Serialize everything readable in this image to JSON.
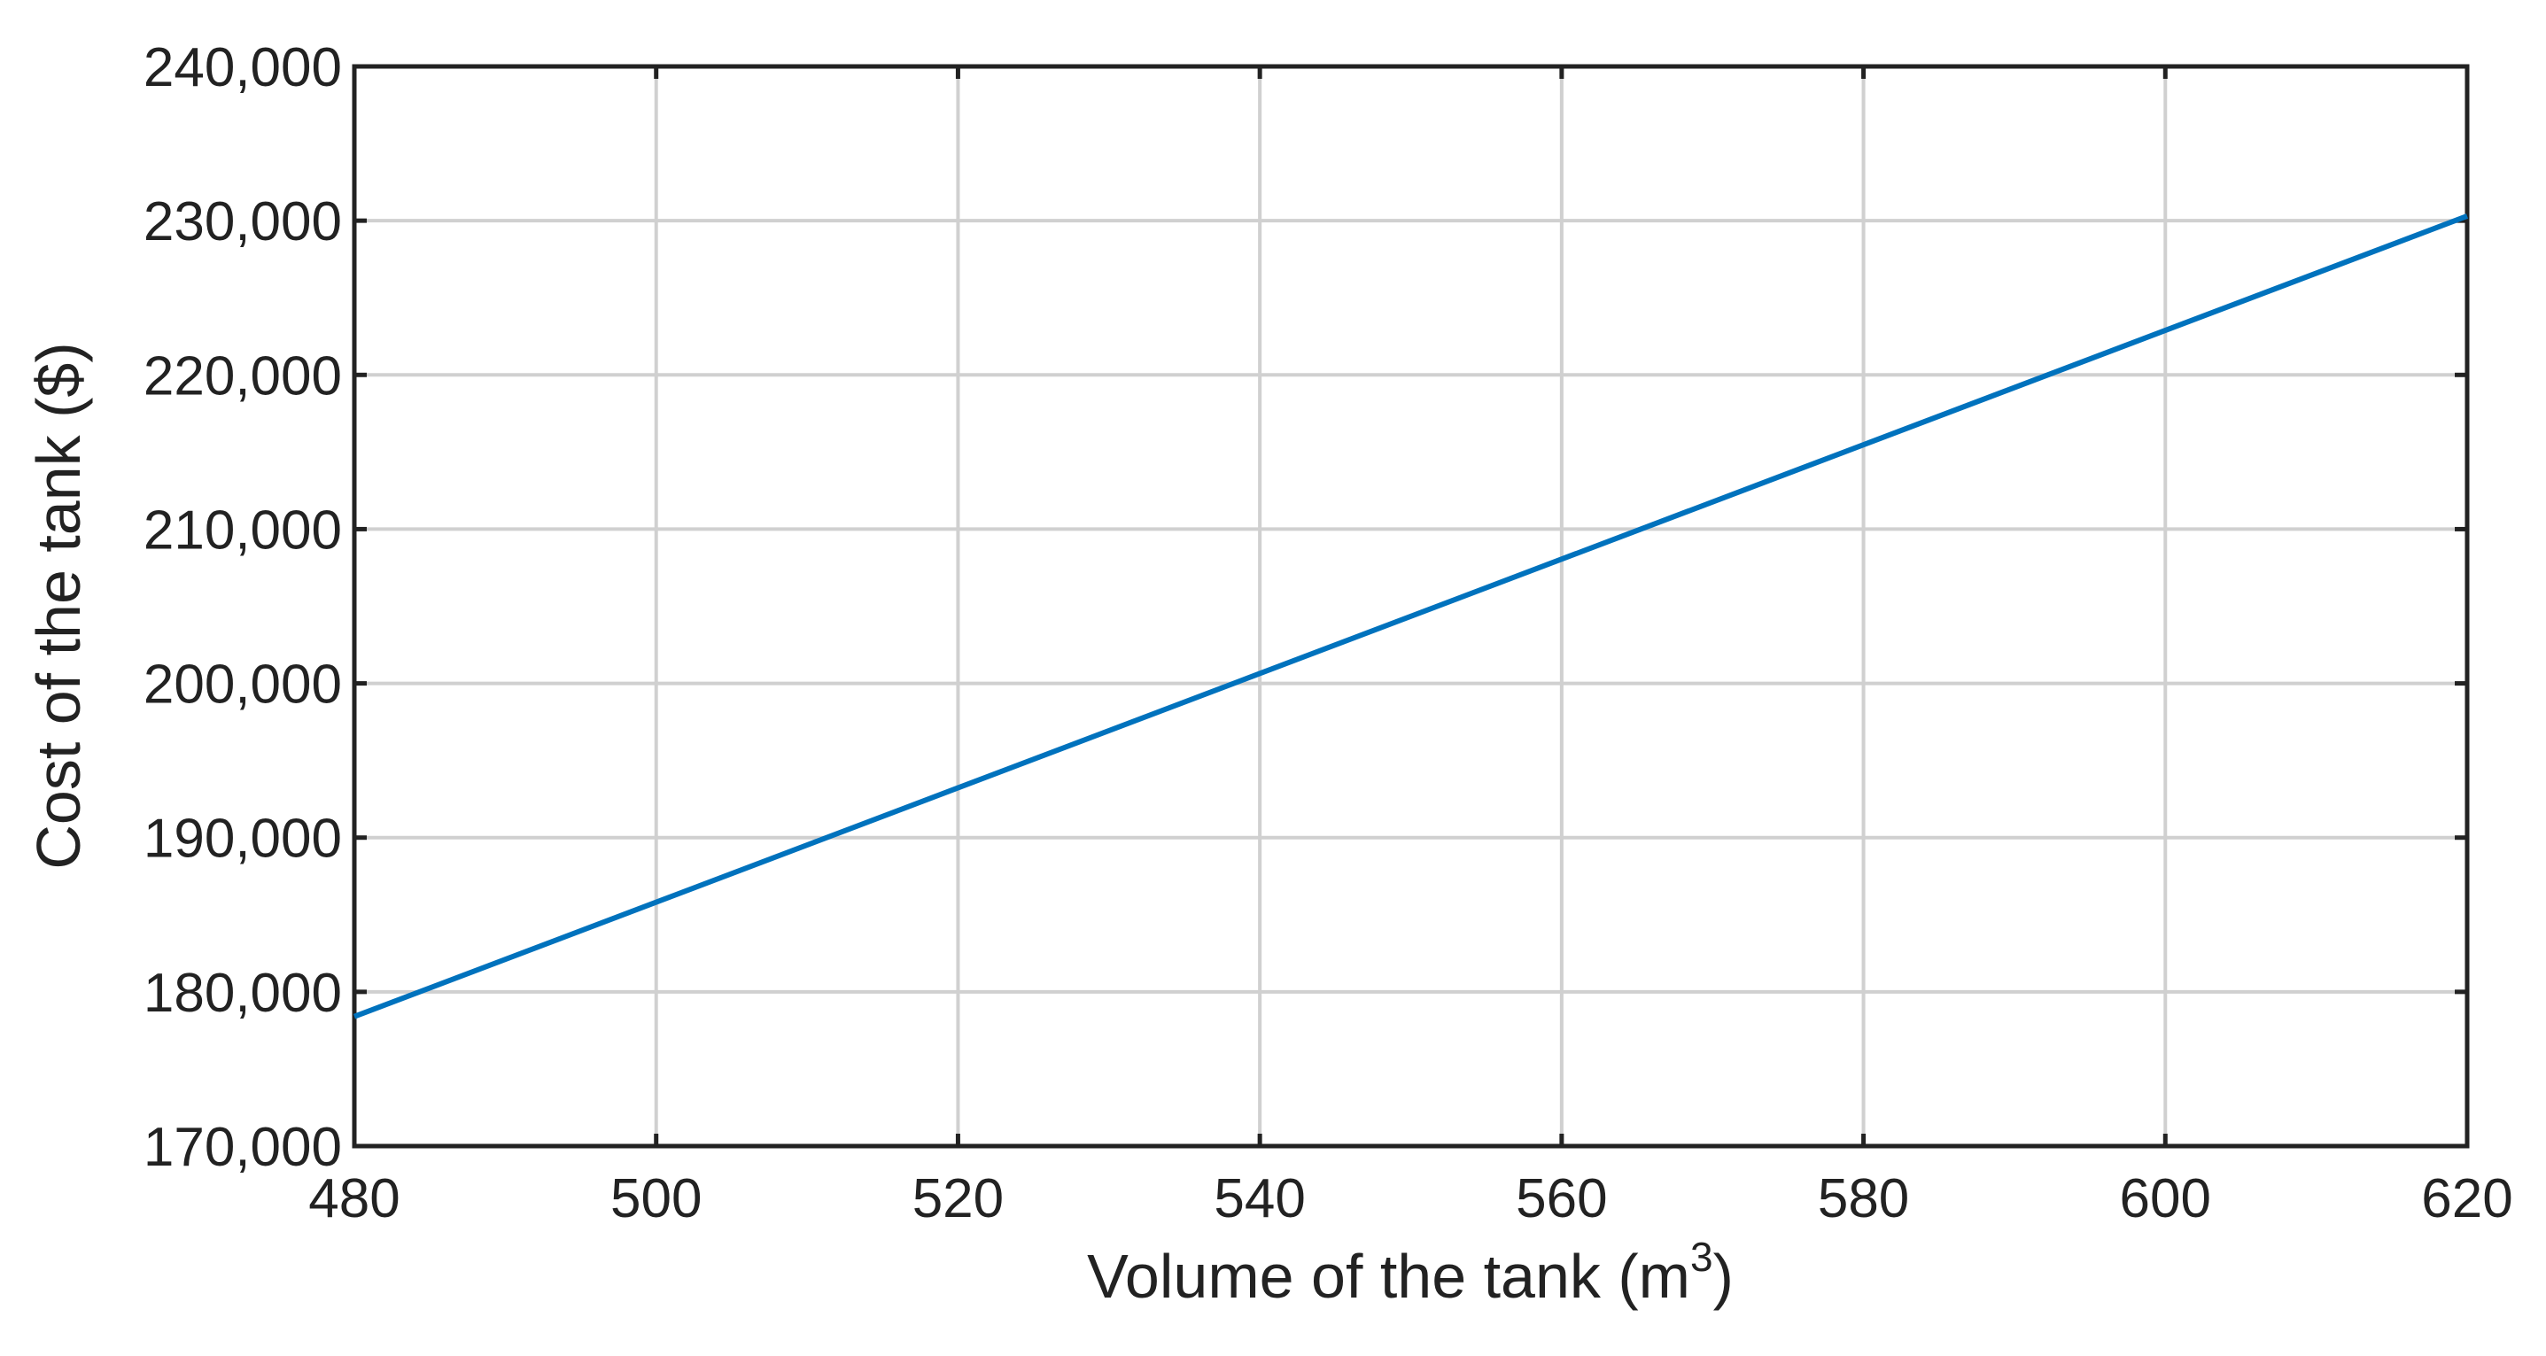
{
  "chart_data": {
    "type": "line",
    "x_label": "Volume of the tank (m",
    "x_label_superscript": "3",
    "x_label_end": ")",
    "y_label": "Cost of the tank ($)",
    "x": [
      480,
      620
    ],
    "series": [
      {
        "color": "#0072bd",
        "values": [
          178400,
          230300
        ]
      }
    ],
    "xlim": [
      480,
      620
    ],
    "xticks": [
      480,
      500,
      520,
      540,
      560,
      580,
      600,
      620
    ],
    "ylim": [
      170000,
      240000
    ],
    "yticks": [
      {
        "value": 170000,
        "label": "170,000"
      },
      {
        "value": 180000,
        "label": "180,000"
      },
      {
        "value": 190000,
        "label": "190,000"
      },
      {
        "value": 200000,
        "label": "200,000"
      },
      {
        "value": 210000,
        "label": "210,000"
      },
      {
        "value": 220000,
        "label": "220,000"
      },
      {
        "value": 230000,
        "label": "230,000"
      },
      {
        "value": 240000,
        "label": "240,000"
      }
    ],
    "grid": true
  }
}
